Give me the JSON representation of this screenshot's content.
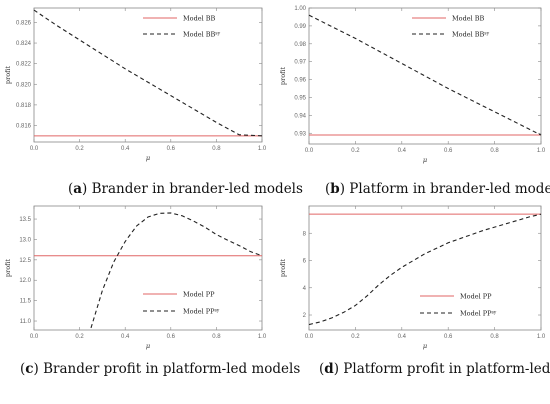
{
  "colors": {
    "model_line": "#e06666",
    "mu_line": "#222222",
    "axis": "#888888"
  },
  "chart_data": [
    {
      "type": "line",
      "caption": {
        "letter": "a",
        "text": " Brander in brander-led models"
      },
      "ylabel": "profit",
      "xlabel": "μ",
      "xlim": [
        0,
        1
      ],
      "ylim": [
        0.8144,
        0.8274
      ],
      "xticks": [
        "0.0",
        "0.2",
        "0.4",
        "0.6",
        "0.8",
        "1.0"
      ],
      "yticks": [
        0.816,
        0.818,
        0.82,
        0.822,
        0.824,
        0.826
      ],
      "ytick_labels": [
        "0.816",
        "0.818",
        "0.820",
        "0.822",
        "0.824",
        "0.826"
      ],
      "legend_position": "top-right",
      "series": [
        {
          "name": "Model BB",
          "style": "solid",
          "x": [
            0,
            1
          ],
          "y": [
            0.815,
            0.815
          ]
        },
        {
          "name": "Model BB",
          "sup": "sy",
          "style": "dashed",
          "x": [
            0,
            0.1,
            0.2,
            0.3,
            0.4,
            0.5,
            0.6,
            0.7,
            0.8,
            0.9,
            1.0
          ],
          "y": [
            0.8272,
            0.8257,
            0.8243,
            0.8229,
            0.8215,
            0.8202,
            0.8189,
            0.8176,
            0.8163,
            0.8151,
            0.815
          ]
        }
      ]
    },
    {
      "type": "line",
      "caption": {
        "letter": "b",
        "text": " Platform in brander-led models"
      },
      "ylabel": "profit",
      "xlabel": "μ",
      "xlim": [
        0,
        1
      ],
      "ylim": [
        0.924,
        1.0
      ],
      "xticks": [
        "0.0",
        "0.2",
        "0.4",
        "0.6",
        "0.8",
        "1.0"
      ],
      "yticks": [
        0.93,
        0.94,
        0.95,
        0.96,
        0.97,
        0.98,
        0.99,
        1.0
      ],
      "ytick_labels": [
        "0.93",
        "0.94",
        "0.95",
        "0.96",
        "0.97",
        "0.98",
        "0.99",
        "1.00"
      ],
      "legend_position": "top-right",
      "series": [
        {
          "name": "Model BB",
          "style": "solid",
          "x": [
            0,
            1
          ],
          "y": [
            0.929,
            0.929
          ]
        },
        {
          "name": "Model BB",
          "sup": "sy",
          "style": "dashed",
          "x": [
            0,
            0.2,
            0.4,
            0.6,
            0.8,
            1.0
          ],
          "y": [
            0.996,
            0.983,
            0.969,
            0.955,
            0.942,
            0.929
          ]
        }
      ]
    },
    {
      "type": "line",
      "caption": {
        "letter": "c",
        "text": " Brander profit in platform-led models"
      },
      "ylabel": "profit",
      "xlabel": "μ",
      "xlim": [
        0,
        1
      ],
      "ylim": [
        10.78,
        13.82
      ],
      "xticks": [
        "0.0",
        "0.2",
        "0.4",
        "0.6",
        "0.8",
        "1.0"
      ],
      "yticks": [
        11.0,
        11.5,
        12.0,
        12.5,
        13.0,
        13.5
      ],
      "ytick_labels": [
        "11.0",
        "11.5",
        "12.0",
        "12.5",
        "13.0",
        "13.5"
      ],
      "legend_position": "bottom-right",
      "series": [
        {
          "name": "Model PP",
          "style": "solid",
          "x": [
            0,
            1
          ],
          "y": [
            12.6,
            12.6
          ]
        },
        {
          "name": "Model PP",
          "sup": "sy",
          "style": "dashed",
          "x": [
            0.25,
            0.3,
            0.35,
            0.4,
            0.45,
            0.5,
            0.55,
            0.6,
            0.65,
            0.7,
            0.75,
            0.8,
            0.85,
            0.9,
            0.95,
            1.0
          ],
          "y": [
            10.83,
            11.75,
            12.45,
            12.95,
            13.33,
            13.55,
            13.64,
            13.65,
            13.58,
            13.45,
            13.3,
            13.12,
            12.98,
            12.85,
            12.7,
            12.6
          ]
        }
      ]
    },
    {
      "type": "line",
      "caption": {
        "letter": "d",
        "text": " Platform profit in platform-led models"
      },
      "ylabel": "profit",
      "xlabel": "μ",
      "xlim": [
        0,
        1
      ],
      "ylim": [
        0.9,
        10.0
      ],
      "xticks": [
        "0.0",
        "0.2",
        "0.4",
        "0.6",
        "0.8",
        "1.0"
      ],
      "yticks": [
        2,
        4,
        6,
        8
      ],
      "ytick_labels": [
        "2",
        "4",
        "6",
        "8"
      ],
      "legend_position": "bottom-right",
      "series": [
        {
          "name": "Model PP",
          "style": "solid",
          "x": [
            0,
            1
          ],
          "y": [
            9.4,
            9.4
          ]
        },
        {
          "name": "Model PP",
          "sup": "sy",
          "style": "dashed",
          "x": [
            0,
            0.05,
            0.1,
            0.15,
            0.2,
            0.25,
            0.3,
            0.35,
            0.4,
            0.45,
            0.5,
            0.55,
            0.6,
            0.65,
            0.7,
            0.75,
            0.8,
            0.85,
            0.9,
            0.95,
            1.0
          ],
          "y": [
            1.3,
            1.5,
            1.8,
            2.2,
            2.7,
            3.4,
            4.2,
            4.9,
            5.5,
            6.0,
            6.5,
            6.9,
            7.3,
            7.6,
            7.9,
            8.2,
            8.45,
            8.7,
            8.95,
            9.2,
            9.4
          ]
        }
      ]
    }
  ]
}
